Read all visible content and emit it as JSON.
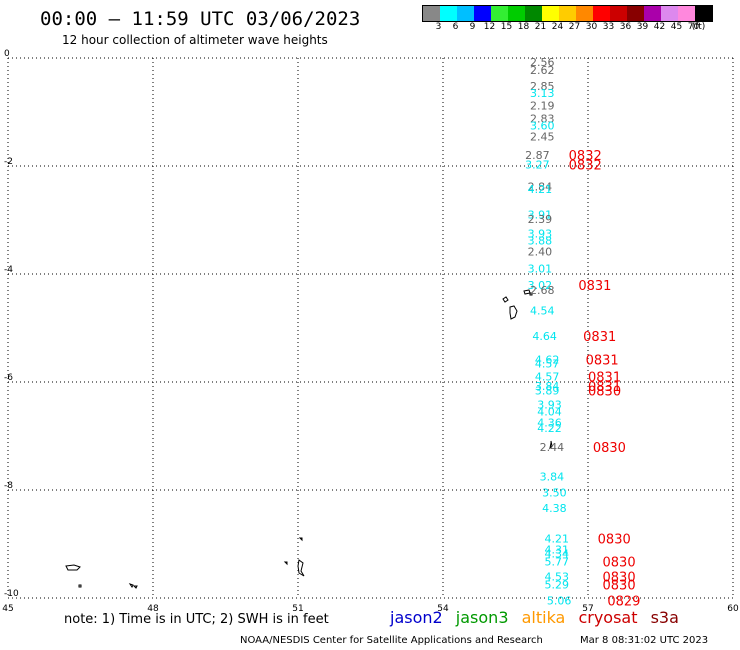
{
  "header": {
    "title": "00:00 – 11:59 UTC 03/06/2023",
    "subtitle": "12 hour collection of altimeter wave heights"
  },
  "scale": {
    "labels": [
      "3",
      "6",
      "9",
      "12",
      "15",
      "18",
      "21",
      "24",
      "27",
      "30",
      "33",
      "36",
      "39",
      "42",
      "45",
      "70",
      "(ft)"
    ],
    "colors": [
      "#888888",
      "#00ffff",
      "#00bfff",
      "#0000ff",
      "#33ee33",
      "#00cc00",
      "#008800",
      "#ffff00",
      "#ffcc00",
      "#ff8800",
      "#ff0000",
      "#cc0000",
      "#880000",
      "#aa00aa",
      "#dd88ee",
      "#ff88dd",
      "#000000"
    ]
  },
  "axes": {
    "x_ticks": [
      "45",
      "48",
      "51",
      "54",
      "57",
      "60"
    ],
    "y_ticks": [
      "0",
      "-2",
      "-4",
      "-6",
      "-8",
      "-10"
    ],
    "x_range": [
      45,
      60
    ],
    "y_range": [
      -10,
      0
    ]
  },
  "colors": {
    "jason2": "#0000cc",
    "jason3": "#009900",
    "altika": "#ff9900",
    "cryosat": "#cc0000",
    "s3a": "#880000",
    "grey": "#666666",
    "cyan": "#00e5ee",
    "time_red": "#ee0000"
  },
  "observations": [
    {
      "lon": 55.8,
      "lat": -0.07,
      "value": "2.56",
      "tone": "grey"
    },
    {
      "lon": 55.8,
      "lat": -0.22,
      "value": "2.62",
      "tone": "grey"
    },
    {
      "lon": 55.8,
      "lat": -0.52,
      "value": "2.85",
      "tone": "grey"
    },
    {
      "lon": 55.8,
      "lat": -0.65,
      "value": "3.13",
      "tone": "cyan"
    },
    {
      "lon": 55.8,
      "lat": -0.88,
      "value": "2.19",
      "tone": "grey"
    },
    {
      "lon": 55.8,
      "lat": -1.12,
      "value": "2.83",
      "tone": "grey"
    },
    {
      "lon": 55.8,
      "lat": -1.25,
      "value": "3.60",
      "tone": "cyan"
    },
    {
      "lon": 55.8,
      "lat": -1.45,
      "value": "2.45",
      "tone": "grey"
    },
    {
      "lon": 55.7,
      "lat": -1.8,
      "value": "2.87",
      "tone": "grey"
    },
    {
      "lon": 55.7,
      "lat": -1.97,
      "value": "3.27",
      "tone": "cyan"
    },
    {
      "lon": 55.75,
      "lat": -2.38,
      "value": "2.84",
      "tone": "grey"
    },
    {
      "lon": 55.75,
      "lat": -2.43,
      "value": "4.21",
      "tone": "cyan"
    },
    {
      "lon": 55.75,
      "lat": -2.9,
      "value": "3.91",
      "tone": "cyan"
    },
    {
      "lon": 55.75,
      "lat": -2.98,
      "value": "2.39",
      "tone": "grey"
    },
    {
      "lon": 55.75,
      "lat": -3.25,
      "value": "3.93",
      "tone": "cyan"
    },
    {
      "lon": 55.75,
      "lat": -3.38,
      "value": "3.88",
      "tone": "cyan"
    },
    {
      "lon": 55.75,
      "lat": -3.58,
      "value": "2.40",
      "tone": "grey"
    },
    {
      "lon": 55.75,
      "lat": -3.9,
      "value": "3.01",
      "tone": "cyan"
    },
    {
      "lon": 55.75,
      "lat": -4.2,
      "value": "3.02",
      "tone": "cyan"
    },
    {
      "lon": 55.8,
      "lat": -4.3,
      "value": "2.68",
      "tone": "grey"
    },
    {
      "lon": 55.8,
      "lat": -4.68,
      "value": "4.54",
      "tone": "cyan"
    },
    {
      "lon": 55.85,
      "lat": -5.15,
      "value": "4.64",
      "tone": "cyan"
    },
    {
      "lon": 55.9,
      "lat": -5.58,
      "value": "4.62",
      "tone": "cyan"
    },
    {
      "lon": 55.9,
      "lat": -5.66,
      "value": "4.57",
      "tone": "cyan"
    },
    {
      "lon": 55.9,
      "lat": -5.9,
      "value": "4.57",
      "tone": "cyan"
    },
    {
      "lon": 55.9,
      "lat": -6.07,
      "value": "3.84",
      "tone": "cyan"
    },
    {
      "lon": 55.9,
      "lat": -6.16,
      "value": "3.89",
      "tone": "cyan"
    },
    {
      "lon": 55.95,
      "lat": -6.42,
      "value": "3.93",
      "tone": "cyan"
    },
    {
      "lon": 55.95,
      "lat": -6.55,
      "value": "4.04",
      "tone": "cyan"
    },
    {
      "lon": 55.95,
      "lat": -6.75,
      "value": "4.36",
      "tone": "cyan"
    },
    {
      "lon": 55.95,
      "lat": -6.85,
      "value": "4.22",
      "tone": "cyan"
    },
    {
      "lon": 56.0,
      "lat": -7.2,
      "value": "2.44",
      "tone": "grey"
    },
    {
      "lon": 56.0,
      "lat": -7.75,
      "value": "3.84",
      "tone": "cyan"
    },
    {
      "lon": 56.05,
      "lat": -8.05,
      "value": "3.50",
      "tone": "cyan"
    },
    {
      "lon": 56.05,
      "lat": -8.33,
      "value": "4.38",
      "tone": "cyan"
    },
    {
      "lon": 56.1,
      "lat": -8.9,
      "value": "4.21",
      "tone": "cyan"
    },
    {
      "lon": 56.1,
      "lat": -9.1,
      "value": "4.31",
      "tone": "cyan"
    },
    {
      "lon": 56.1,
      "lat": -9.18,
      "value": "4.34",
      "tone": "cyan"
    },
    {
      "lon": 56.1,
      "lat": -9.32,
      "value": "5.77",
      "tone": "cyan"
    },
    {
      "lon": 56.1,
      "lat": -9.6,
      "value": "4.53",
      "tone": "cyan"
    },
    {
      "lon": 56.1,
      "lat": -9.75,
      "value": "5.29",
      "tone": "cyan"
    },
    {
      "lon": 56.15,
      "lat": -10.05,
      "value": "5.06",
      "tone": "cyan"
    }
  ],
  "pass_times": [
    {
      "lon": 56.6,
      "lat": -1.8,
      "value": "0832"
    },
    {
      "lon": 56.6,
      "lat": -1.97,
      "value": "0832"
    },
    {
      "lon": 56.8,
      "lat": -4.2,
      "value": "0831"
    },
    {
      "lon": 56.9,
      "lat": -5.15,
      "value": "0831"
    },
    {
      "lon": 56.95,
      "lat": -5.58,
      "value": "0831"
    },
    {
      "lon": 57.0,
      "lat": -5.9,
      "value": "0831"
    },
    {
      "lon": 57.0,
      "lat": -6.07,
      "value": "0831"
    },
    {
      "lon": 57.0,
      "lat": -6.16,
      "value": "0830"
    },
    {
      "lon": 57.1,
      "lat": -7.2,
      "value": "0830"
    },
    {
      "lon": 57.2,
      "lat": -8.9,
      "value": "0830"
    },
    {
      "lon": 57.3,
      "lat": -9.32,
      "value": "0830"
    },
    {
      "lon": 57.3,
      "lat": -9.6,
      "value": "0830"
    },
    {
      "lon": 57.3,
      "lat": -9.75,
      "value": "0830"
    },
    {
      "lon": 57.4,
      "lat": -10.05,
      "value": "0829"
    }
  ],
  "note": "note: 1) Time is in UTC; 2) SWH is in feet",
  "legend": {
    "jason2": "jason2",
    "jason3": "jason3",
    "altika": "altika",
    "cryosat": "cryosat",
    "s3a": "s3a"
  },
  "footer": {
    "credit": "NOAA/NESDIS Center for Satellite Applications and Research",
    "timestamp": "Mar  8 08:31:02 UTC 2023"
  }
}
